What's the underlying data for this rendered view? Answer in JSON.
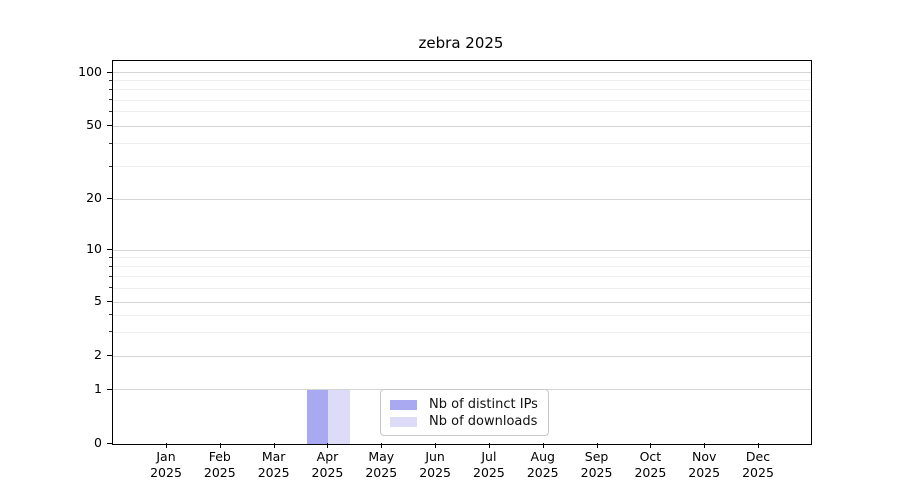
{
  "title": "zebra 2025",
  "legend": {
    "items": [
      {
        "label": "Nb of distinct IPs",
        "color": "#a9a9f2"
      },
      {
        "label": "Nb of downloads",
        "color": "#dcdcf8"
      }
    ]
  },
  "axes": {
    "y_tick_labels": [
      "0",
      "1",
      "2",
      "5",
      "10",
      "20",
      "50",
      "100"
    ],
    "x_tick_month_labels": [
      "Jan",
      "Feb",
      "Mar",
      "Apr",
      "May",
      "Jun",
      "Jul",
      "Aug",
      "Sep",
      "Oct",
      "Nov",
      "Dec"
    ],
    "x_tick_year_label": "2025"
  },
  "chart_data": {
    "type": "bar",
    "title": "zebra 2025",
    "categories": [
      "Jan 2025",
      "Feb 2025",
      "Mar 2025",
      "Apr 2025",
      "May 2025",
      "Jun 2025",
      "Jul 2025",
      "Aug 2025",
      "Sep 2025",
      "Oct 2025",
      "Nov 2025",
      "Dec 2025"
    ],
    "series": [
      {
        "name": "Nb of distinct IPs",
        "color": "#a9a9f2",
        "values": [
          0,
          0,
          0,
          1,
          0,
          0,
          0,
          0,
          0,
          0,
          0,
          0
        ]
      },
      {
        "name": "Nb of downloads",
        "color": "#dcdcf8",
        "values": [
          0,
          0,
          0,
          1,
          0,
          0,
          0,
          0,
          0,
          0,
          0,
          0
        ]
      }
    ],
    "xlabel": "",
    "ylabel": "",
    "yscale": "symlog-like",
    "y_major_ticks": [
      0,
      1,
      2,
      5,
      10,
      20,
      50,
      100
    ],
    "y_minor_ticks": [
      3,
      4,
      6,
      7,
      8,
      9,
      30,
      40,
      60,
      70,
      80,
      90
    ],
    "ylim": [
      0,
      120
    ],
    "grid": "horizontal major and minor gridlines",
    "legend_position": "bottom center inside plot"
  }
}
